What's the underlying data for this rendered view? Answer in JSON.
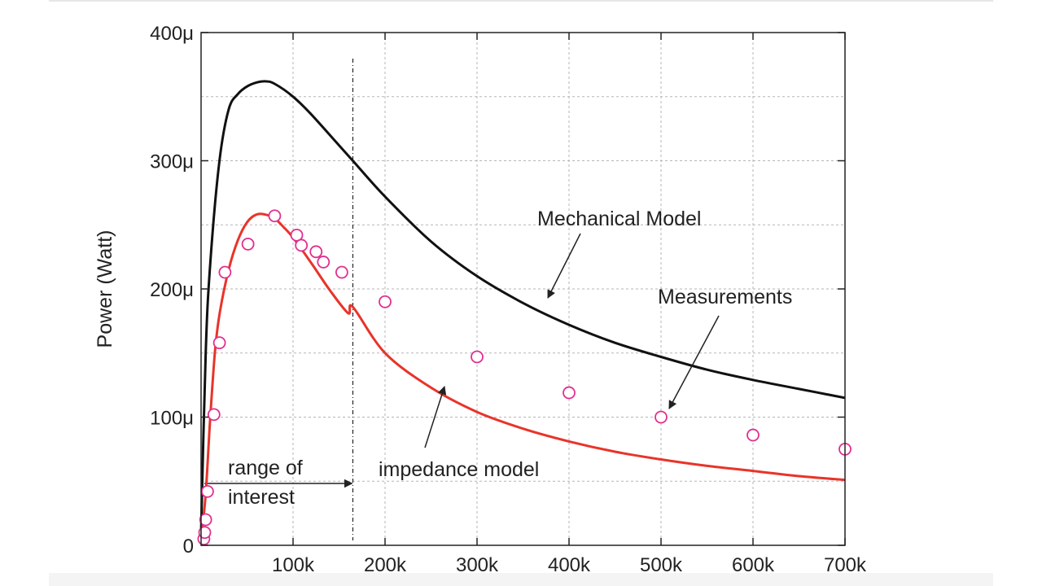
{
  "chart_data": {
    "type": "line",
    "ylabel": "Power (Watt)",
    "xlabel": "",
    "xlim": [
      0,
      700000
    ],
    "ylim": [
      0,
      0.0004
    ],
    "grid": true,
    "x_ticks": [
      {
        "value": 100000,
        "label": "100k"
      },
      {
        "value": 200000,
        "label": "200k"
      },
      {
        "value": 300000,
        "label": "300k"
      },
      {
        "value": 400000,
        "label": "400k"
      },
      {
        "value": 500000,
        "label": "500k"
      },
      {
        "value": 600000,
        "label": "600k"
      },
      {
        "value": 700000,
        "label": "700k"
      }
    ],
    "y_ticks": [
      {
        "value": 0,
        "label": "0"
      },
      {
        "value": 0.0001,
        "label": "100μ"
      },
      {
        "value": 0.0002,
        "label": "200μ"
      },
      {
        "value": 0.0003,
        "label": "300μ"
      },
      {
        "value": 0.0004,
        "label": "400μ"
      }
    ],
    "series": [
      {
        "name": "Mechanical Model",
        "kind": "line",
        "color": "#111111",
        "x": [
          0,
          5000,
          10000,
          20000,
          30000,
          40000,
          50000,
          60000,
          70000,
          80000,
          100000,
          120000,
          150000,
          165000,
          200000,
          250000,
          300000,
          350000,
          400000,
          450000,
          500000,
          550000,
          600000,
          650000,
          700000
        ],
        "y": [
          1e-05,
          0.00015,
          0.00022,
          0.0003,
          0.00034,
          0.000352,
          0.000358,
          0.000361,
          0.000362,
          0.00036,
          0.00035,
          0.000336,
          0.000312,
          0.0003,
          0.000272,
          0.000237,
          0.00021,
          0.000189,
          0.000172,
          0.000158,
          0.000147,
          0.000137,
          0.000129,
          0.000122,
          0.000115
        ]
      },
      {
        "name": "impedance model",
        "kind": "line",
        "color": "#e8342a",
        "x": [
          0,
          5000,
          10000,
          15000,
          20000,
          30000,
          40000,
          50000,
          60000,
          70000,
          80000,
          90000,
          100000,
          120000,
          140000,
          160000,
          165000,
          200000,
          250000,
          300000,
          350000,
          400000,
          450000,
          500000,
          550000,
          600000,
          650000,
          700000
        ],
        "y": [
          5e-06,
          4e-05,
          0.0001,
          0.00015,
          0.00018,
          0.000215,
          0.000238,
          0.000252,
          0.000258,
          0.000258,
          0.000255,
          0.000248,
          0.00024,
          0.00022,
          0.000199,
          0.000181,
          0.000186,
          0.00015,
          0.000123,
          0.000104,
          9.1e-05,
          8.1e-05,
          7.3e-05,
          6.7e-05,
          6.2e-05,
          5.8e-05,
          5.4e-05,
          5.1e-05
        ]
      },
      {
        "name": "Measurements",
        "kind": "scatter",
        "color": "#e0308f",
        "x": [
          3000,
          4000,
          5000,
          7000,
          14000,
          20000,
          26000,
          51000,
          80000,
          104000,
          109000,
          125000,
          133000,
          153000,
          200000,
          300000,
          400000,
          500000,
          600000,
          700000
        ],
        "y": [
          5e-06,
          1e-05,
          2e-05,
          4.2e-05,
          0.000102,
          0.000158,
          0.000213,
          0.000235,
          0.000257,
          0.000242,
          0.000234,
          0.000229,
          0.000221,
          0.000213,
          0.00019,
          0.000147,
          0.000119,
          0.0001,
          8.6e-05,
          7.5e-05
        ]
      }
    ],
    "range_marker": {
      "x": 165000,
      "label_line1": "range of",
      "label_line2": "interest"
    },
    "annotations": [
      {
        "text": "Mechanical Model"
      },
      {
        "text": "Measurements"
      },
      {
        "text": "impedance model"
      }
    ]
  }
}
